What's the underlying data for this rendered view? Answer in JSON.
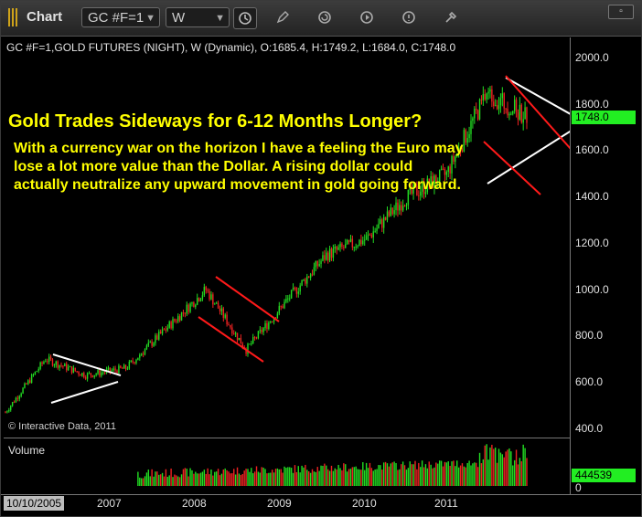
{
  "toolbar": {
    "app_title": "Chart",
    "symbol": "GC #F=1",
    "interval": "W"
  },
  "chart_info": "GC #F=1,GOLD FUTURES (NIGHT), W (Dynamic), O:1685.4, H:1749.2, L:1684.0, C:1748.0",
  "price_axis": [
    "2000.0",
    "1800.0",
    "1600.0",
    "1400.0",
    "1200.0",
    "1000.0",
    "800.0",
    "600.0",
    "400.0"
  ],
  "last_price_tag": "1748.0",
  "volume_tag": "444539",
  "volume_zero": "0",
  "volume_label": "Volume",
  "copyright": "© Interactive Data, 2011",
  "time_axis": {
    "start": "10/10/2005",
    "labels": [
      "2007",
      "2008",
      "2009",
      "2010",
      "2011"
    ]
  },
  "annotation": {
    "headline": "Gold Trades Sideways for 6-12 Months Longer?",
    "body": "With a currency war on the horizon I have a feeling the Euro may lose a lot more value than the Dollar. A rising dollar could actually neutralize any upward movement in gold going forward."
  },
  "colors": {
    "up": "#22dd22",
    "down": "#ee2222",
    "text_yellow": "#ffff00",
    "tag_green": "#22ee22"
  },
  "chart_data": {
    "type": "candlestick",
    "title": "GC #F=1,GOLD FUTURES (NIGHT), W (Dynamic)",
    "ylim": [
      400,
      2000
    ],
    "y_ticks": [
      400,
      600,
      800,
      1000,
      1200,
      1400,
      1600,
      1800,
      2000
    ],
    "x_labels": [
      "2007",
      "2008",
      "2009",
      "2010",
      "2011"
    ],
    "series": [
      {
        "name": "Close",
        "x": [
          "2005-10",
          "2006-05",
          "2006-12",
          "2007-06",
          "2007-12",
          "2008-03",
          "2008-10",
          "2009-06",
          "2009-12",
          "2010-06",
          "2010-12",
          "2011-06",
          "2011-08",
          "2011-10"
        ],
        "values": [
          470,
          700,
          630,
          660,
          830,
          1000,
          740,
          950,
          1150,
          1220,
          1400,
          1500,
          1850,
          1748
        ]
      }
    ],
    "volume_last": 444539
  }
}
